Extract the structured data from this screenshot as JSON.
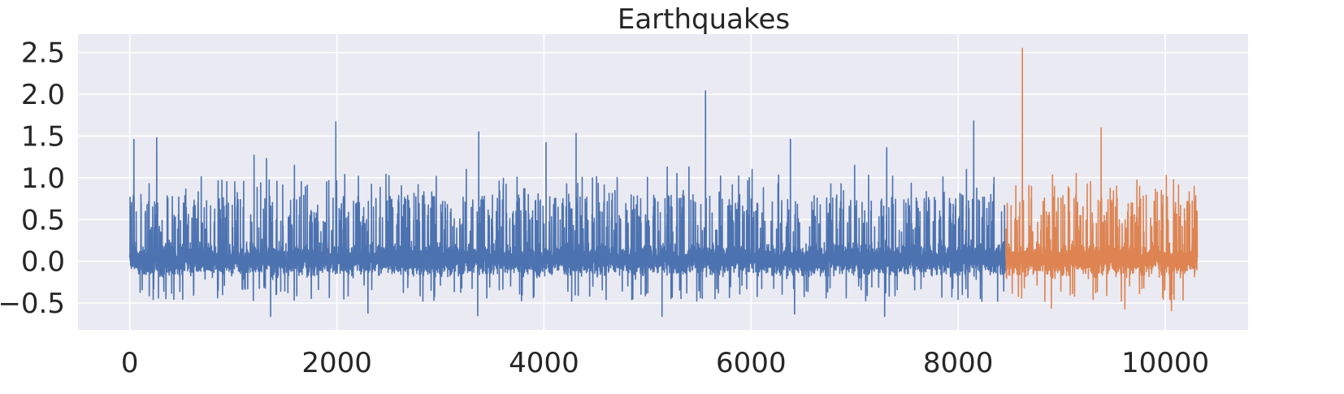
{
  "chart_data": {
    "type": "line",
    "title": "Earthquakes",
    "xlabel": "",
    "ylabel": "",
    "xlim": [
      -500,
      10800
    ],
    "ylim": [
      -0.82,
      2.72
    ],
    "x_ticks": [
      0,
      2000,
      4000,
      6000,
      8000,
      10000
    ],
    "y_ticks": [
      -0.5,
      0.0,
      0.5,
      1.0,
      1.5,
      2.0,
      2.5
    ],
    "x_tick_labels": [
      "0",
      "2000",
      "4000",
      "6000",
      "8000",
      "10000"
    ],
    "y_tick_labels": [
      "−0.5",
      "0.0",
      "0.5",
      "1.0",
      "1.5",
      "2.0",
      "2.5"
    ],
    "grid": true,
    "legend": "none",
    "background": "#eaeaf2",
    "series": [
      {
        "color": "#4c72b0",
        "x_range": [
          0,
          8460
        ],
        "n_points": 8461,
        "typical_range": [
          -0.35,
          0.5
        ],
        "peaks": [
          {
            "x": 40,
            "y": 1.46
          },
          {
            "x": 260,
            "y": 1.48
          },
          {
            "x": 1200,
            "y": 1.27
          },
          {
            "x": 1320,
            "y": 1.23
          },
          {
            "x": 1590,
            "y": 1.15
          },
          {
            "x": 1990,
            "y": 1.67
          },
          {
            "x": 3370,
            "y": 1.55
          },
          {
            "x": 3250,
            "y": 1.1
          },
          {
            "x": 4020,
            "y": 1.42
          },
          {
            "x": 4310,
            "y": 1.53
          },
          {
            "x": 5190,
            "y": 1.13
          },
          {
            "x": 5400,
            "y": 1.13
          },
          {
            "x": 5560,
            "y": 2.04
          },
          {
            "x": 6010,
            "y": 1.1
          },
          {
            "x": 6380,
            "y": 1.46
          },
          {
            "x": 7000,
            "y": 1.15
          },
          {
            "x": 7310,
            "y": 1.36
          },
          {
            "x": 8150,
            "y": 1.68
          },
          {
            "x": 8080,
            "y": 1.1
          }
        ],
        "troughs": [
          {
            "x": 1360,
            "y": -0.66
          },
          {
            "x": 2300,
            "y": -0.62
          },
          {
            "x": 3360,
            "y": -0.65
          },
          {
            "x": 5140,
            "y": -0.66
          },
          {
            "x": 6420,
            "y": -0.63
          },
          {
            "x": 7290,
            "y": -0.66
          }
        ]
      },
      {
        "color": "#dd8452",
        "x_range": [
          8461,
          10310
        ],
        "n_points": 1850,
        "typical_range": [
          -0.4,
          0.5
        ],
        "peaks": [
          {
            "x": 8620,
            "y": 2.55
          },
          {
            "x": 9380,
            "y": 1.6
          },
          {
            "x": 10010,
            "y": 1.03
          },
          {
            "x": 9140,
            "y": 1.05
          },
          {
            "x": 9530,
            "y": 0.9
          }
        ],
        "troughs": [
          {
            "x": 8900,
            "y": -0.56
          },
          {
            "x": 9610,
            "y": -0.57
          },
          {
            "x": 10060,
            "y": -0.59
          }
        ]
      }
    ]
  }
}
